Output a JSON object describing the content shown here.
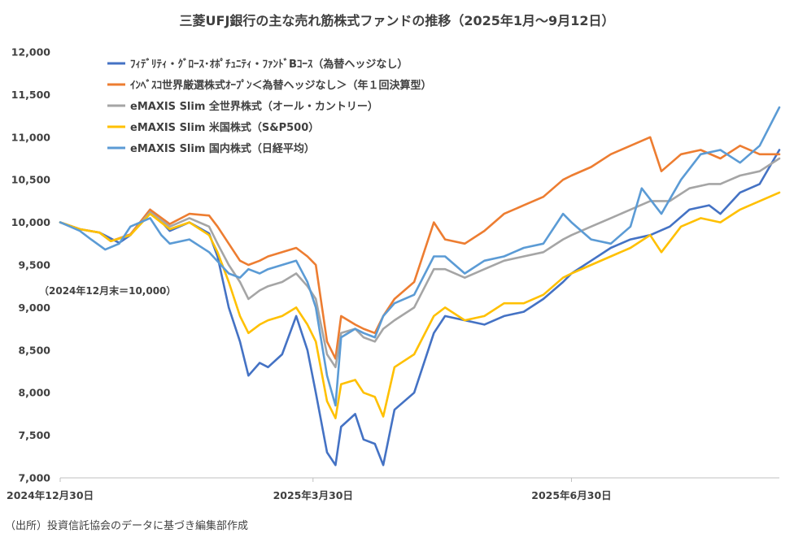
{
  "chart_data": {
    "type": "line",
    "title": "三菱UFJ銀行の主な売れ筋株式ファンドの推移（2025年1月～9月12日）",
    "annotation": "（2024年12月末＝10,000）",
    "source_note": "（出所）投資信託協会のデータに基づき編集部作成",
    "xlabel": "",
    "ylabel": "",
    "x_start": "2024-12-30",
    "x_end": "2025-09-12",
    "x_tick_labels": [
      "2024年12月30日",
      "2025年3月30日",
      "2025年6月30日"
    ],
    "y_tick_labels": [
      "7,000",
      "7,500",
      "8,000",
      "8,500",
      "9,000",
      "9,500",
      "10,000",
      "10,500",
      "11,000",
      "11,500",
      "12,000"
    ],
    "ylim": [
      7000,
      12000
    ],
    "grid": false,
    "legend_position": "top-left",
    "series": [
      {
        "name": "ﾌｨﾃﾞﾘﾃｨ・ｸﾞﾛｰｽ･ｵﾎﾟﾁｭﾆﾃｨ・ﾌｧﾝﾄﾞBｺｰｽ（為替ヘッジなし）",
        "color": "#4472C4",
        "points": [
          [
            "2024-12-30",
            10000
          ],
          [
            "2025-01-06",
            9920
          ],
          [
            "2025-01-13",
            9880
          ],
          [
            "2025-01-20",
            9760
          ],
          [
            "2025-01-24",
            9850
          ],
          [
            "2025-01-31",
            10150
          ],
          [
            "2025-02-07",
            9900
          ],
          [
            "2025-02-14",
            10000
          ],
          [
            "2025-02-21",
            9870
          ],
          [
            "2025-02-24",
            9600
          ],
          [
            "2025-02-28",
            9000
          ],
          [
            "2025-03-04",
            8600
          ],
          [
            "2025-03-07",
            8200
          ],
          [
            "2025-03-11",
            8350
          ],
          [
            "2025-03-14",
            8300
          ],
          [
            "2025-03-19",
            8450
          ],
          [
            "2025-03-24",
            8900
          ],
          [
            "2025-03-28",
            8500
          ],
          [
            "2025-03-31",
            8000
          ],
          [
            "2025-04-04",
            7300
          ],
          [
            "2025-04-07",
            7150
          ],
          [
            "2025-04-09",
            7600
          ],
          [
            "2025-04-14",
            7750
          ],
          [
            "2025-04-17",
            7450
          ],
          [
            "2025-04-21",
            7400
          ],
          [
            "2025-04-24",
            7150
          ],
          [
            "2025-04-28",
            7800
          ],
          [
            "2025-05-05",
            8000
          ],
          [
            "2025-05-12",
            8700
          ],
          [
            "2025-05-16",
            8900
          ],
          [
            "2025-05-23",
            8850
          ],
          [
            "2025-05-30",
            8800
          ],
          [
            "2025-06-06",
            8900
          ],
          [
            "2025-06-13",
            8950
          ],
          [
            "2025-06-20",
            9100
          ],
          [
            "2025-06-27",
            9300
          ],
          [
            "2025-06-30",
            9400
          ],
          [
            "2025-07-07",
            9550
          ],
          [
            "2025-07-14",
            9700
          ],
          [
            "2025-07-21",
            9800
          ],
          [
            "2025-07-28",
            9850
          ],
          [
            "2025-08-04",
            9950
          ],
          [
            "2025-08-11",
            10150
          ],
          [
            "2025-08-18",
            10200
          ],
          [
            "2025-08-22",
            10100
          ],
          [
            "2025-08-29",
            10350
          ],
          [
            "2025-09-05",
            10450
          ],
          [
            "2025-09-12",
            10850
          ]
        ]
      },
      {
        "name": "ｲﾝﾍﾞｽｺ世界厳選株式ｵｰﾌﾟﾝ＜為替ヘッジなし＞（年１回決算型）",
        "color": "#ED7D31",
        "points": [
          [
            "2024-12-30",
            10000
          ],
          [
            "2025-01-06",
            9920
          ],
          [
            "2025-01-13",
            9880
          ],
          [
            "2025-01-17",
            9780
          ],
          [
            "2025-01-24",
            9860
          ],
          [
            "2025-01-31",
            10150
          ],
          [
            "2025-02-07",
            9980
          ],
          [
            "2025-02-14",
            10100
          ],
          [
            "2025-02-21",
            10080
          ],
          [
            "2025-02-24",
            9950
          ],
          [
            "2025-02-28",
            9750
          ],
          [
            "2025-03-04",
            9550
          ],
          [
            "2025-03-07",
            9500
          ],
          [
            "2025-03-11",
            9550
          ],
          [
            "2025-03-14",
            9600
          ],
          [
            "2025-03-19",
            9650
          ],
          [
            "2025-03-24",
            9700
          ],
          [
            "2025-03-28",
            9600
          ],
          [
            "2025-03-31",
            9500
          ],
          [
            "2025-04-04",
            8600
          ],
          [
            "2025-04-07",
            8400
          ],
          [
            "2025-04-09",
            8900
          ],
          [
            "2025-04-14",
            8800
          ],
          [
            "2025-04-17",
            8750
          ],
          [
            "2025-04-21",
            8700
          ],
          [
            "2025-04-24",
            8900
          ],
          [
            "2025-04-28",
            9100
          ],
          [
            "2025-05-05",
            9300
          ],
          [
            "2025-05-12",
            10000
          ],
          [
            "2025-05-16",
            9800
          ],
          [
            "2025-05-23",
            9750
          ],
          [
            "2025-05-30",
            9900
          ],
          [
            "2025-06-06",
            10100
          ],
          [
            "2025-06-13",
            10200
          ],
          [
            "2025-06-20",
            10300
          ],
          [
            "2025-06-27",
            10500
          ],
          [
            "2025-06-30",
            10550
          ],
          [
            "2025-07-07",
            10650
          ],
          [
            "2025-07-14",
            10800
          ],
          [
            "2025-07-21",
            10900
          ],
          [
            "2025-07-28",
            11000
          ],
          [
            "2025-08-01",
            10600
          ],
          [
            "2025-08-08",
            10800
          ],
          [
            "2025-08-15",
            10850
          ],
          [
            "2025-08-22",
            10750
          ],
          [
            "2025-08-29",
            10900
          ],
          [
            "2025-09-05",
            10800
          ],
          [
            "2025-09-12",
            10800
          ]
        ]
      },
      {
        "name": "eMAXIS Slim 全世界株式（オール・カントリー）",
        "color": "#A5A5A5",
        "points": [
          [
            "2024-12-30",
            10000
          ],
          [
            "2025-01-06",
            9920
          ],
          [
            "2025-01-13",
            9880
          ],
          [
            "2025-01-17",
            9780
          ],
          [
            "2025-01-24",
            9850
          ],
          [
            "2025-01-31",
            10120
          ],
          [
            "2025-02-07",
            9950
          ],
          [
            "2025-02-14",
            10050
          ],
          [
            "2025-02-21",
            9950
          ],
          [
            "2025-02-24",
            9750
          ],
          [
            "2025-02-28",
            9500
          ],
          [
            "2025-03-04",
            9300
          ],
          [
            "2025-03-07",
            9100
          ],
          [
            "2025-03-11",
            9200
          ],
          [
            "2025-03-14",
            9250
          ],
          [
            "2025-03-19",
            9300
          ],
          [
            "2025-03-24",
            9400
          ],
          [
            "2025-03-28",
            9250
          ],
          [
            "2025-03-31",
            9100
          ],
          [
            "2025-04-04",
            8450
          ],
          [
            "2025-04-07",
            8300
          ],
          [
            "2025-04-09",
            8700
          ],
          [
            "2025-04-14",
            8750
          ],
          [
            "2025-04-17",
            8650
          ],
          [
            "2025-04-21",
            8600
          ],
          [
            "2025-04-24",
            8750
          ],
          [
            "2025-04-28",
            8850
          ],
          [
            "2025-05-05",
            9000
          ],
          [
            "2025-05-12",
            9450
          ],
          [
            "2025-05-16",
            9450
          ],
          [
            "2025-05-23",
            9350
          ],
          [
            "2025-05-30",
            9450
          ],
          [
            "2025-06-06",
            9550
          ],
          [
            "2025-06-13",
            9600
          ],
          [
            "2025-06-20",
            9650
          ],
          [
            "2025-06-27",
            9800
          ],
          [
            "2025-06-30",
            9850
          ],
          [
            "2025-07-07",
            9950
          ],
          [
            "2025-07-14",
            10050
          ],
          [
            "2025-07-21",
            10150
          ],
          [
            "2025-07-28",
            10250
          ],
          [
            "2025-08-04",
            10250
          ],
          [
            "2025-08-11",
            10400
          ],
          [
            "2025-08-18",
            10450
          ],
          [
            "2025-08-22",
            10450
          ],
          [
            "2025-08-29",
            10550
          ],
          [
            "2025-09-05",
            10600
          ],
          [
            "2025-09-12",
            10750
          ]
        ]
      },
      {
        "name": "eMAXIS Slim 米国株式（S&P500）",
        "color": "#FFC000",
        "points": [
          [
            "2024-12-30",
            10000
          ],
          [
            "2025-01-06",
            9920
          ],
          [
            "2025-01-13",
            9880
          ],
          [
            "2025-01-17",
            9780
          ],
          [
            "2025-01-24",
            9850
          ],
          [
            "2025-01-31",
            10100
          ],
          [
            "2025-02-07",
            9920
          ],
          [
            "2025-02-14",
            10000
          ],
          [
            "2025-02-21",
            9850
          ],
          [
            "2025-02-24",
            9650
          ],
          [
            "2025-02-28",
            9300
          ],
          [
            "2025-03-04",
            8900
          ],
          [
            "2025-03-07",
            8700
          ],
          [
            "2025-03-11",
            8800
          ],
          [
            "2025-03-14",
            8850
          ],
          [
            "2025-03-19",
            8900
          ],
          [
            "2025-03-24",
            9000
          ],
          [
            "2025-03-28",
            8800
          ],
          [
            "2025-03-31",
            8600
          ],
          [
            "2025-04-04",
            7900
          ],
          [
            "2025-04-07",
            7700
          ],
          [
            "2025-04-09",
            8100
          ],
          [
            "2025-04-14",
            8150
          ],
          [
            "2025-04-17",
            8000
          ],
          [
            "2025-04-21",
            7950
          ],
          [
            "2025-04-24",
            7720
          ],
          [
            "2025-04-28",
            8300
          ],
          [
            "2025-05-05",
            8450
          ],
          [
            "2025-05-12",
            8900
          ],
          [
            "2025-05-16",
            9000
          ],
          [
            "2025-05-23",
            8850
          ],
          [
            "2025-05-30",
            8900
          ],
          [
            "2025-06-06",
            9050
          ],
          [
            "2025-06-13",
            9050
          ],
          [
            "2025-06-20",
            9150
          ],
          [
            "2025-06-27",
            9350
          ],
          [
            "2025-06-30",
            9400
          ],
          [
            "2025-07-07",
            9500
          ],
          [
            "2025-07-14",
            9600
          ],
          [
            "2025-07-21",
            9700
          ],
          [
            "2025-07-28",
            9850
          ],
          [
            "2025-08-01",
            9650
          ],
          [
            "2025-08-08",
            9950
          ],
          [
            "2025-08-15",
            10050
          ],
          [
            "2025-08-22",
            10000
          ],
          [
            "2025-08-29",
            10150
          ],
          [
            "2025-09-05",
            10250
          ],
          [
            "2025-09-12",
            10350
          ]
        ]
      },
      {
        "name": "eMAXIS Slim 国内株式（日経平均）",
        "color": "#5B9BD5",
        "points": [
          [
            "2024-12-30",
            10000
          ],
          [
            "2025-01-06",
            9900
          ],
          [
            "2025-01-10",
            9800
          ],
          [
            "2025-01-15",
            9680
          ],
          [
            "2025-01-20",
            9750
          ],
          [
            "2025-01-24",
            9950
          ],
          [
            "2025-01-31",
            10050
          ],
          [
            "2025-02-04",
            9850
          ],
          [
            "2025-02-07",
            9750
          ],
          [
            "2025-02-14",
            9800
          ],
          [
            "2025-02-21",
            9650
          ],
          [
            "2025-02-28",
            9400
          ],
          [
            "2025-03-04",
            9350
          ],
          [
            "2025-03-07",
            9450
          ],
          [
            "2025-03-11",
            9400
          ],
          [
            "2025-03-14",
            9450
          ],
          [
            "2025-03-19",
            9500
          ],
          [
            "2025-03-24",
            9550
          ],
          [
            "2025-03-28",
            9300
          ],
          [
            "2025-03-31",
            9000
          ],
          [
            "2025-04-04",
            8200
          ],
          [
            "2025-04-07",
            7850
          ],
          [
            "2025-04-09",
            8650
          ],
          [
            "2025-04-14",
            8750
          ],
          [
            "2025-04-17",
            8700
          ],
          [
            "2025-04-21",
            8650
          ],
          [
            "2025-04-24",
            8900
          ],
          [
            "2025-04-28",
            9050
          ],
          [
            "2025-05-05",
            9150
          ],
          [
            "2025-05-12",
            9600
          ],
          [
            "2025-05-16",
            9600
          ],
          [
            "2025-05-23",
            9400
          ],
          [
            "2025-05-30",
            9550
          ],
          [
            "2025-06-06",
            9600
          ],
          [
            "2025-06-13",
            9700
          ],
          [
            "2025-06-20",
            9750
          ],
          [
            "2025-06-27",
            10100
          ],
          [
            "2025-06-30",
            10000
          ],
          [
            "2025-07-07",
            9800
          ],
          [
            "2025-07-14",
            9750
          ],
          [
            "2025-07-21",
            9950
          ],
          [
            "2025-07-25",
            10400
          ],
          [
            "2025-08-01",
            10100
          ],
          [
            "2025-08-08",
            10500
          ],
          [
            "2025-08-15",
            10800
          ],
          [
            "2025-08-22",
            10850
          ],
          [
            "2025-08-29",
            10700
          ],
          [
            "2025-09-05",
            10900
          ],
          [
            "2025-09-12",
            11350
          ]
        ]
      }
    ]
  }
}
